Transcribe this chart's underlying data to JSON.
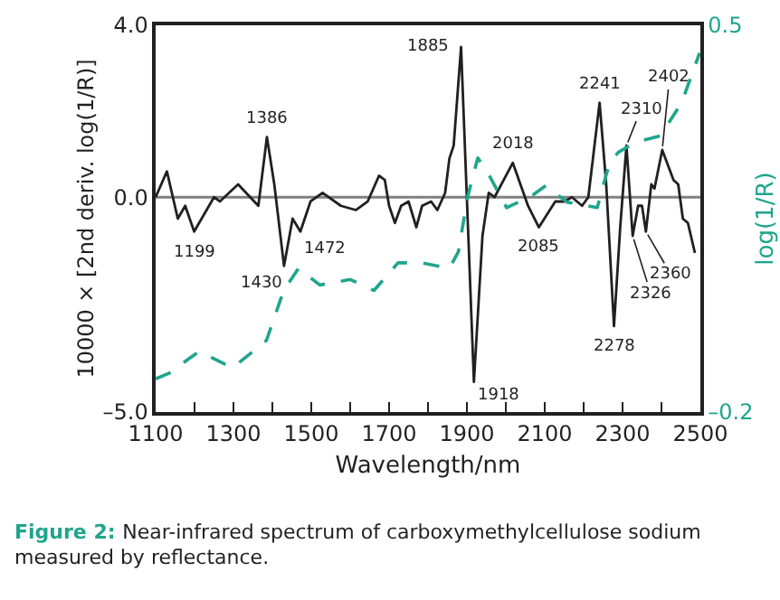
{
  "chart_data": {
    "type": "line",
    "xlabel": "Wavelength/nm",
    "ylabel": "10000 × [2nd deriv. log(1/R)]",
    "y2label": "log(1/R)",
    "xlim": [
      1100,
      2500
    ],
    "xticks": [
      1100,
      {
        "value": 1200,
        "label": null
      },
      1300,
      {
        "value": 1400,
        "label": null
      },
      1500,
      {
        "value": 1600,
        "label": null
      },
      1700,
      {
        "value": 1800,
        "label": null
      },
      1900,
      {
        "value": 2000,
        "label": null
      },
      2100,
      {
        "value": 2200,
        "label": null
      },
      2300,
      {
        "value": 2400,
        "label": null
      },
      2500
    ],
    "ylim": [
      -5,
      4
    ],
    "yticks": [
      {
        "value": 4,
        "label": "4.0"
      },
      {
        "value": 0,
        "label": "0.0"
      },
      {
        "value": -5,
        "label": "–5.0"
      }
    ],
    "y2lim": [
      -0.2,
      0.5
    ],
    "y2ticks": [
      {
        "value": 0.5,
        "label": "0.5"
      },
      {
        "value": -0.2,
        "label": "–0.2"
      }
    ],
    "marker": "none",
    "ref_lines": [
      {
        "axis": "y",
        "value": 0,
        "color": "#808080"
      }
    ],
    "series": [
      {
        "color": "#231f20",
        "line_style": "solid",
        "x": [
          1100,
          1129,
          1157,
          1176,
          1199,
          1250,
          1265,
          1312,
          1343,
          1364,
          1386,
          1405,
          1430,
          1452,
          1472,
          1498,
          1529,
          1576,
          1615,
          1645,
          1674,
          1689,
          1700,
          1715,
          1731,
          1750,
          1770,
          1785,
          1808,
          1824,
          1844,
          1855,
          1866,
          1885,
          1918,
          1940,
          1956,
          1971,
          2018,
          2057,
          2085,
          2127,
          2150,
          2170,
          2196,
          2212,
          2241,
          2258,
          2278,
          2294,
          2310,
          2326,
          2340,
          2350,
          2360,
          2374,
          2382,
          2402,
          2431,
          2443,
          2455,
          2468,
          2486
        ],
        "values": [
          0.0,
          0.6,
          -0.5,
          -0.2,
          -0.8,
          0.0,
          -0.1,
          0.3,
          0.0,
          -0.2,
          1.4,
          0.3,
          -1.6,
          -0.5,
          -0.8,
          -0.1,
          0.1,
          -0.2,
          -0.3,
          -0.1,
          0.5,
          0.4,
          -0.2,
          -0.6,
          -0.2,
          -0.1,
          -0.7,
          -0.2,
          -0.1,
          -0.3,
          0.1,
          0.9,
          1.2,
          3.5,
          -4.3,
          -0.9,
          0.1,
          0.0,
          0.8,
          -0.2,
          -0.7,
          -0.1,
          -0.1,
          0.0,
          -0.2,
          0.0,
          2.2,
          0.3,
          -3.0,
          -0.7,
          1.2,
          -0.9,
          -0.2,
          -0.2,
          -0.8,
          0.3,
          0.2,
          1.1,
          0.4,
          0.3,
          -0.5,
          -0.6,
          -1.3
        ]
      },
      {
        "color": "#1fa58c",
        "line_style": "dashed",
        "axis": "y2",
        "x": [
          1100,
          1134,
          1212,
          1297,
          1351,
          1385,
          1429,
          1467,
          1522,
          1600,
          1661,
          1723,
          1785,
          1855,
          1878,
          1902,
          1928,
          1956,
          2002,
          2064,
          2103,
          2157,
          2235,
          2266,
          2289,
          2313,
          2343,
          2397,
          2452,
          2498
        ],
        "values": [
          -0.14,
          -0.13,
          -0.09,
          -0.12,
          -0.09,
          -0.07,
          0.02,
          0.06,
          0.03,
          0.04,
          0.02,
          0.07,
          0.07,
          0.06,
          0.09,
          0.19,
          0.26,
          0.23,
          0.17,
          0.19,
          0.21,
          0.18,
          0.17,
          0.25,
          0.27,
          0.28,
          0.29,
          0.3,
          0.36,
          0.45
        ]
      }
    ],
    "annotations": [
      {
        "text": "1199",
        "x": 1199,
        "y": -0.8
      },
      {
        "text": "1386",
        "x": 1386,
        "y": 1.4
      },
      {
        "text": "1430",
        "x": 1430,
        "y": -1.6
      },
      {
        "text": "1472",
        "x": 1472,
        "y": -0.8
      },
      {
        "text": "1885",
        "x": 1885,
        "y": 3.5
      },
      {
        "text": "1918",
        "x": 1918,
        "y": -4.3
      },
      {
        "text": "2018",
        "x": 2018,
        "y": 0.8
      },
      {
        "text": "2085",
        "x": 2085,
        "y": -0.7
      },
      {
        "text": "2241",
        "x": 2241,
        "y": 2.2
      },
      {
        "text": "2278",
        "x": 2278,
        "y": -3.0
      },
      {
        "text": "2310",
        "x": 2310,
        "y": 1.2
      },
      {
        "text": "2326",
        "x": 2326,
        "y": -0.9
      },
      {
        "text": "2360",
        "x": 2360,
        "y": -0.8
      },
      {
        "text": "2402",
        "x": 2402,
        "y": 1.1
      },
      "Figure 2:",
      "Near-infrared spectrum of carboxymethylcellulose sodium measured by reflectance."
    ]
  }
}
